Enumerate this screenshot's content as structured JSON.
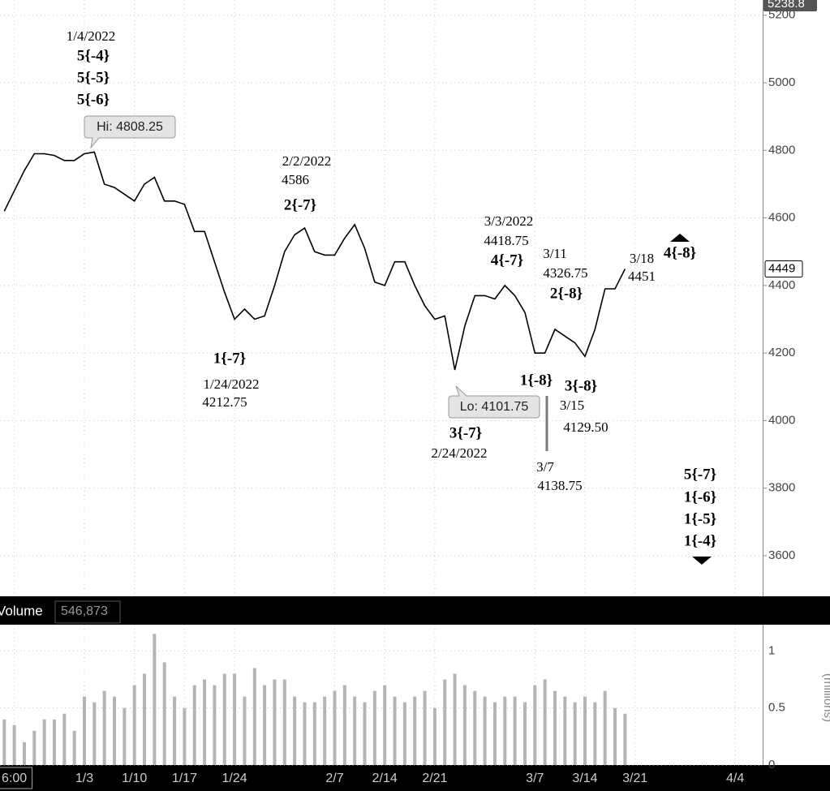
{
  "chart_data": [
    {
      "type": "line",
      "x": [
        "12/22",
        "12/23",
        "12/24",
        "12/27",
        "12/28",
        "12/29",
        "12/30",
        "12/31",
        "1/3",
        "1/4",
        "1/5",
        "1/6",
        "1/7",
        "1/10",
        "1/11",
        "1/12",
        "1/13",
        "1/14",
        "1/17",
        "1/18",
        "1/19",
        "1/20",
        "1/21",
        "1/24",
        "1/25",
        "1/26",
        "1/27",
        "1/28",
        "1/31",
        "2/1",
        "2/2",
        "2/3",
        "2/4",
        "2/7",
        "2/8",
        "2/9",
        "2/10",
        "2/11",
        "2/14",
        "2/15",
        "2/16",
        "2/17",
        "2/18",
        "2/21",
        "2/22",
        "2/23",
        "2/24",
        "2/25",
        "2/28",
        "3/1",
        "3/2",
        "3/3",
        "3/4",
        "3/7",
        "3/8",
        "3/9",
        "3/10",
        "3/11",
        "3/14",
        "3/15",
        "3/16",
        "3/17",
        "3/18",
        "3/21",
        "3/22",
        "3/23",
        "3/24",
        "3/25",
        "3/28",
        "3/29",
        "3/30",
        "3/31",
        "4/1",
        "4/4",
        "4/5",
        "4/6"
      ],
      "values": [
        4620,
        4680,
        4740,
        4790,
        4790,
        4785,
        4770,
        4770,
        4790,
        4795,
        4700,
        4690,
        4670,
        4650,
        4700,
        4720,
        4650,
        4650,
        4640,
        4560,
        4560,
        4470,
        4380,
        4300,
        4330,
        4300,
        4310,
        4400,
        4500,
        4550,
        4570,
        4500,
        4490,
        4490,
        4540,
        4580,
        4510,
        4410,
        4400,
        4470,
        4470,
        4400,
        4340,
        4300,
        4310,
        4150,
        4280,
        4370,
        4370,
        4360,
        4400,
        4370,
        4320,
        4200,
        4200,
        4270,
        4250,
        4230,
        4190,
        4270,
        4390,
        4390,
        4449,
        null,
        null,
        null,
        null,
        null,
        null,
        null,
        null,
        null,
        null,
        null,
        null,
        null
      ],
      "color": "#000000",
      "ylim": [
        3480,
        5245
      ],
      "yticks": [
        3600,
        3800,
        4000,
        4200,
        4400,
        4600,
        4800,
        5000,
        5200
      ],
      "xticks": [
        {
          "value": "12/23",
          "label": "6:00"
        },
        "1/3",
        "1/10",
        "1/17",
        "1/24",
        "2/7",
        "2/14",
        "2/21",
        "3/7",
        "3/14",
        "3/21",
        "4/4"
      ],
      "grid": true,
      "top_label": 5238.8,
      "last_price": 4449,
      "hi_label": "Hi: 4808.25",
      "lo_label": "Lo: 4101.75",
      "annotations": [
        {
          "text": "1/4/2022",
          "bold": false
        },
        {
          "text": "5{-4}",
          "bold": true
        },
        {
          "text": "5{-5}",
          "bold": true
        },
        {
          "text": "5{-6}",
          "bold": true
        },
        {
          "text": "2/2/2022",
          "bold": false
        },
        {
          "text": "4586",
          "bold": false
        },
        {
          "text": "2{-7}",
          "bold": true
        },
        {
          "text": "1{-7}",
          "bold": true
        },
        {
          "text": "1/24/2022",
          "bold": false
        },
        {
          "text": "4212.75",
          "bold": false
        },
        {
          "text": "3/3/2022",
          "bold": false
        },
        {
          "text": "4418.75",
          "bold": false
        },
        {
          "text": "4{-7}",
          "bold": true
        },
        {
          "text": "3/11",
          "bold": false
        },
        {
          "text": "4326.75",
          "bold": false
        },
        {
          "text": "2{-8}",
          "bold": true
        },
        {
          "text": "1{-8}",
          "bold": true
        },
        {
          "text": "3{-8}",
          "bold": true
        },
        {
          "text": "3/15",
          "bold": false
        },
        {
          "text": "4129.50",
          "bold": false
        },
        {
          "text": "3{-7}",
          "bold": true
        },
        {
          "text": "2/24/2022",
          "bold": false
        },
        {
          "text": "3/7",
          "bold": false
        },
        {
          "text": "4138.75",
          "bold": false
        },
        {
          "text": "3/18",
          "bold": false
        },
        {
          "text": "4451",
          "bold": false
        },
        {
          "text": "4{-8}",
          "bold": true
        },
        {
          "text": "5{-7}",
          "bold": true
        },
        {
          "text": "1{-6}",
          "bold": true
        },
        {
          "text": "1{-5}",
          "bold": true
        },
        {
          "text": "1{-4}",
          "bold": true
        }
      ]
    },
    {
      "type": "bar",
      "title": "Volume",
      "readout": "546,873",
      "values": [
        0.4,
        0.35,
        0.2,
        0.3,
        0.4,
        0.4,
        0.45,
        0.3,
        0.6,
        0.55,
        0.65,
        0.6,
        0.5,
        0.7,
        0.8,
        1.15,
        0.9,
        0.6,
        0.5,
        0.7,
        0.75,
        0.7,
        0.8,
        0.8,
        0.6,
        0.85,
        0.7,
        0.75,
        0.75,
        0.6,
        0.55,
        0.55,
        0.6,
        0.65,
        0.7,
        0.6,
        0.55,
        0.65,
        0.7,
        0.6,
        0.55,
        0.6,
        0.65,
        0.5,
        0.75,
        0.8,
        0.7,
        0.65,
        0.6,
        0.55,
        0.6,
        0.6,
        0.55,
        0.7,
        0.75,
        0.65,
        0.6,
        0.55,
        0.6,
        0.55,
        0.65,
        0.5,
        0.45,
        null,
        null,
        null,
        null,
        null,
        null,
        null,
        null,
        null,
        null,
        null,
        null,
        null
      ],
      "color": "#b4b4b4",
      "ylim": [
        0,
        1.23
      ],
      "yticks": [
        0,
        0.5,
        1
      ],
      "y_label": "(millions)",
      "grid": true
    }
  ]
}
